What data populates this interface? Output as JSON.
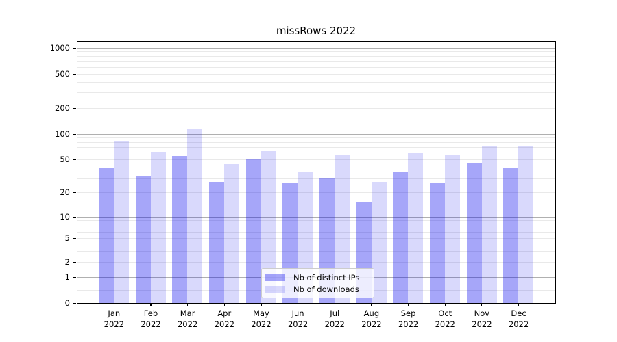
{
  "chart_data": {
    "type": "bar",
    "title": "missRows 2022",
    "categories": [
      "Jan",
      "Feb",
      "Mar",
      "Apr",
      "May",
      "Jun",
      "Jul",
      "Aug",
      "Sep",
      "Oct",
      "Nov",
      "Dec"
    ],
    "category_year": "2022",
    "series": [
      {
        "name": "Nb of distinct IPs",
        "color": "rgba(0,0,238,0.35)",
        "values": [
          40,
          32,
          55,
          27,
          51,
          26,
          30,
          15,
          35,
          26,
          46,
          40
        ]
      },
      {
        "name": "Nb of downloads",
        "color": "rgba(0,0,238,0.15)",
        "values": [
          83,
          62,
          113,
          44,
          63,
          35,
          57,
          27,
          61,
          57,
          72,
          72
        ]
      }
    ],
    "xlabel": "",
    "ylabel": "",
    "yscale": "asinh-like (log above 1, linear 0-1)",
    "ylim": [
      0,
      1200
    ],
    "y_ticks": [
      0,
      1,
      2,
      5,
      10,
      20,
      50,
      100,
      200,
      500,
      1000
    ],
    "major_grid_values": [
      1,
      10,
      100,
      1000
    ],
    "minor_grid_values": [
      0.3,
      0.5,
      0.7,
      2,
      3,
      4,
      5,
      6,
      7,
      8,
      9,
      20,
      30,
      40,
      50,
      60,
      70,
      80,
      90,
      200,
      300,
      400,
      500,
      600,
      700,
      800,
      900
    ],
    "grid": true,
    "legend_position": "lower center"
  },
  "style": {
    "major_grid_color": "#b0b0b0",
    "minor_grid_color": "#e9e9e9",
    "spine_color": "#000000",
    "text_color": "#000000",
    "legend_bg": "rgba(255,255,255,0.8)",
    "legend_border": "#cccccc"
  }
}
